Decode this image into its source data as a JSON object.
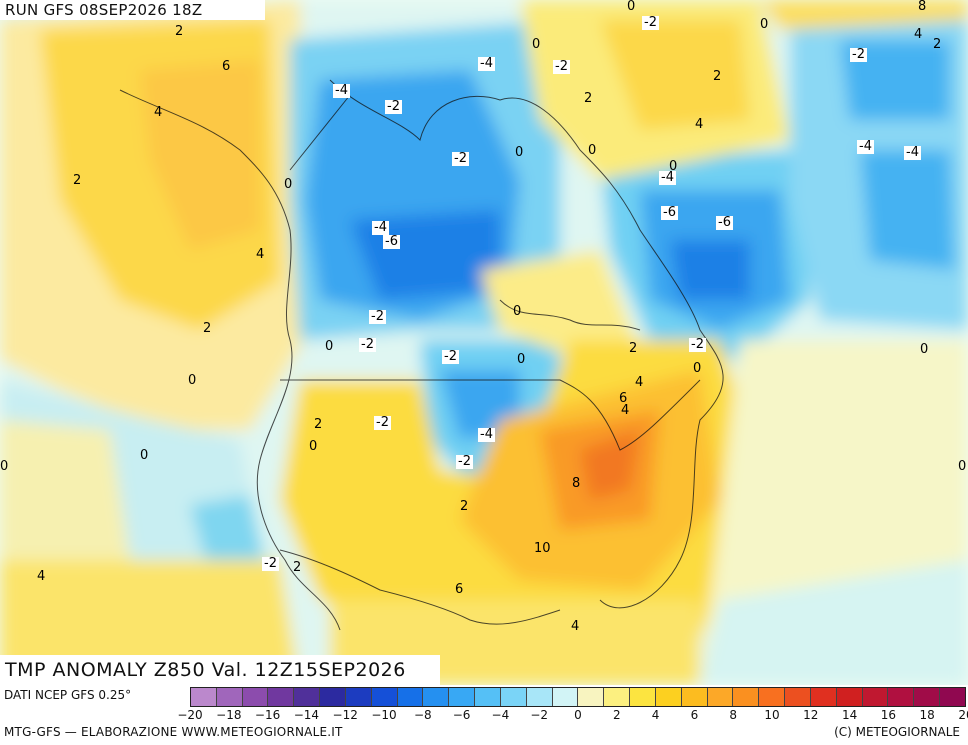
{
  "header": {
    "run_label": "RUN GFS 08SEP2026 18Z"
  },
  "map": {
    "product_title": "TMP ANOMALY Z850 Val. 12Z15SEP2026",
    "contour_labels": [
      {
        "text": "2",
        "boxed": false
      },
      {
        "text": "6",
        "boxed": false
      },
      {
        "text": "4",
        "boxed": false
      },
      {
        "text": "2",
        "boxed": false
      },
      {
        "text": "0",
        "boxed": false
      },
      {
        "text": "4",
        "boxed": false
      },
      {
        "text": "2",
        "boxed": false
      },
      {
        "text": "0",
        "boxed": false
      },
      {
        "text": "0",
        "boxed": false
      },
      {
        "text": "4",
        "boxed": false
      },
      {
        "text": "-4",
        "boxed": true
      },
      {
        "text": "-2",
        "boxed": true
      },
      {
        "text": "-4",
        "boxed": true
      },
      {
        "text": "-2",
        "boxed": true
      },
      {
        "text": "0",
        "boxed": false
      },
      {
        "text": "0",
        "boxed": false
      },
      {
        "text": "-2",
        "boxed": true
      },
      {
        "text": "2",
        "boxed": false
      },
      {
        "text": "0",
        "boxed": false
      },
      {
        "text": "-2",
        "boxed": true
      },
      {
        "text": "0",
        "boxed": false
      },
      {
        "text": "2",
        "boxed": false
      },
      {
        "text": "4",
        "boxed": false
      },
      {
        "text": "0",
        "boxed": false
      },
      {
        "text": "8",
        "boxed": false
      },
      {
        "text": "4",
        "boxed": false
      },
      {
        "text": "2",
        "boxed": false
      },
      {
        "text": "-2",
        "boxed": true
      },
      {
        "text": "-4",
        "boxed": true
      },
      {
        "text": "-4",
        "boxed": true
      },
      {
        "text": "-6",
        "boxed": true
      },
      {
        "text": "-4",
        "boxed": true
      },
      {
        "text": "-6",
        "boxed": true
      },
      {
        "text": "-6",
        "boxed": true
      },
      {
        "text": "-4",
        "boxed": true
      },
      {
        "text": "0",
        "boxed": false
      },
      {
        "text": "-2",
        "boxed": true
      },
      {
        "text": "0",
        "boxed": false
      },
      {
        "text": "-2",
        "boxed": true
      },
      {
        "text": "-2",
        "boxed": true
      },
      {
        "text": "-4",
        "boxed": true
      },
      {
        "text": "0",
        "boxed": false
      },
      {
        "text": "2",
        "boxed": false
      },
      {
        "text": "4",
        "boxed": false
      },
      {
        "text": "-2",
        "boxed": true
      },
      {
        "text": "-2",
        "boxed": true
      },
      {
        "text": "-2",
        "boxed": true
      },
      {
        "text": "0",
        "boxed": false
      },
      {
        "text": "2",
        "boxed": false
      },
      {
        "text": "0",
        "boxed": false
      },
      {
        "text": "6",
        "boxed": false
      },
      {
        "text": "4",
        "boxed": false
      },
      {
        "text": "8",
        "boxed": false
      },
      {
        "text": "10",
        "boxed": false
      },
      {
        "text": "6",
        "boxed": false
      },
      {
        "text": "4",
        "boxed": false
      },
      {
        "text": "2",
        "boxed": false
      },
      {
        "text": "0",
        "boxed": false
      },
      {
        "text": "-2",
        "boxed": true
      },
      {
        "text": "2",
        "boxed": false
      },
      {
        "text": "0",
        "boxed": false
      },
      {
        "text": "0",
        "boxed": false
      },
      {
        "text": "0",
        "boxed": false
      }
    ]
  },
  "footer": {
    "source": "DATI NCEP GFS 0.25°",
    "credit": "MTG-GFS — ELABORAZIONE WWW.METEOGIORNALE.IT",
    "copyright": "(C) METEOGIORNALE"
  },
  "legend": {
    "colors": [
      "#bb88cc",
      "#a066bb",
      "#8c4cad",
      "#70389f",
      "#50309a",
      "#2c2aa0",
      "#1c3cc0",
      "#1550d8",
      "#1670e8",
      "#2590f0",
      "#38a8f4",
      "#55c0f6",
      "#7ad4f7",
      "#a8e6f8",
      "#d2f4f6",
      "#f8f4c0",
      "#fcf080",
      "#fce440",
      "#fcd020",
      "#fcbc20",
      "#fca828",
      "#fa9020",
      "#f87020",
      "#ec5020",
      "#e03020",
      "#d02020",
      "#c01830",
      "#b01040",
      "#a00c48",
      "#900850"
    ],
    "ticks": [
      "−20",
      "−18",
      "−16",
      "−14",
      "−12",
      "−10",
      "−8",
      "−6",
      "−4",
      "−2",
      "0",
      "2",
      "4",
      "6",
      "8",
      "10",
      "12",
      "14",
      "16",
      "18",
      "20"
    ]
  }
}
